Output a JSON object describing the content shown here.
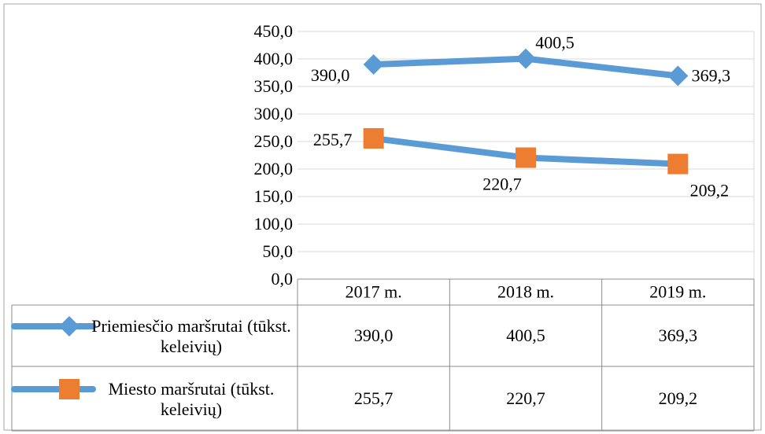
{
  "chart_data": {
    "type": "line",
    "categories": [
      "2017 m.",
      "2018 m.",
      "2019 m."
    ],
    "series": [
      {
        "name": "Priemiesčio maršrutai (tūkst. keleivių)",
        "line_color": "#5b9bd5",
        "marker_color": "#5b9bd5",
        "marker": "diamond",
        "values": [
          390.0,
          400.5,
          369.3
        ],
        "value_labels": [
          "390,0",
          "400,5",
          "369,3"
        ]
      },
      {
        "name": "Miesto maršrutai (tūkst. keleivių)",
        "line_color": "#5b9bd5",
        "marker_color": "#ed7d31",
        "marker": "square",
        "values": [
          255.7,
          220.7,
          209.2
        ],
        "value_labels": [
          "255,7",
          "220,7",
          "209,2"
        ]
      }
    ],
    "ylim": [
      0,
      450
    ],
    "yticks": [
      {
        "value": 0,
        "label": "0,0"
      },
      {
        "value": 50,
        "label": "50,0"
      },
      {
        "value": 100,
        "label": "100,0"
      },
      {
        "value": 150,
        "label": "150,0"
      },
      {
        "value": 200,
        "label": "200,0"
      },
      {
        "value": 250,
        "label": "250,0"
      },
      {
        "value": 300,
        "label": "300,0"
      },
      {
        "value": 350,
        "label": "350,0"
      },
      {
        "value": 400,
        "label": "400,0"
      },
      {
        "value": 450,
        "label": "450,0"
      }
    ],
    "grid": true,
    "data_table": true
  }
}
